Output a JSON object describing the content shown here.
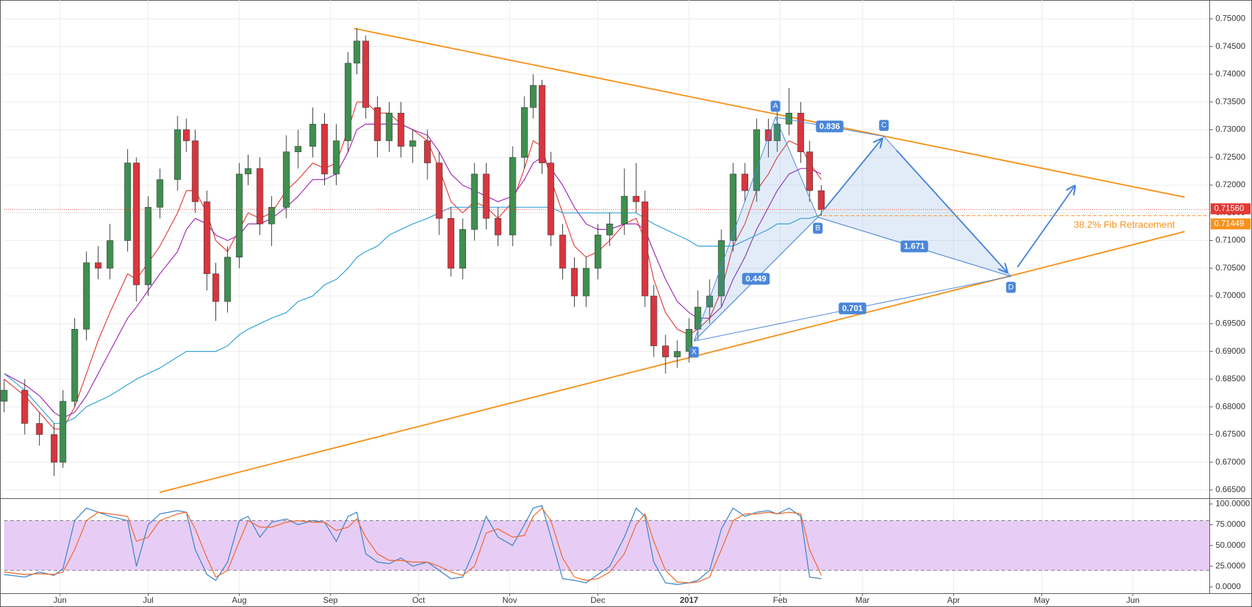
{
  "chart_data": [
    {
      "type": "candlestick",
      "xlim": [
        -19,
        391
      ],
      "ylim": [
        0.6635,
        0.7534
      ],
      "yticks": [
        {
          "value": 0.665,
          "label": "0.66500"
        },
        {
          "value": 0.67,
          "label": "0.67000"
        },
        {
          "value": 0.675,
          "label": "0.67500"
        },
        {
          "value": 0.68,
          "label": "0.68000"
        },
        {
          "value": 0.685,
          "label": "0.68500"
        },
        {
          "value": 0.69,
          "label": "0.69000"
        },
        {
          "value": 0.695,
          "label": "0.69500"
        },
        {
          "value": 0.7,
          "label": "0.70000"
        },
        {
          "value": 0.705,
          "label": "0.70500"
        },
        {
          "value": 0.71,
          "label": "0.71000"
        },
        {
          "value": 0.715,
          "label": "0.71500"
        },
        {
          "value": 0.72,
          "label": "0.72000"
        },
        {
          "value": 0.725,
          "label": "0.72500"
        },
        {
          "value": 0.73,
          "label": "0.73000"
        },
        {
          "value": 0.735,
          "label": "0.73500"
        },
        {
          "value": 0.74,
          "label": "0.74000"
        },
        {
          "value": 0.745,
          "label": "0.74500"
        },
        {
          "value": 0.75,
          "label": "0.75000"
        }
      ],
      "grid": true,
      "up_color": "#3f8f4f",
      "down_color": "#d9363e",
      "x": [
        -19,
        -12,
        -7,
        -2,
        1,
        5,
        9,
        13,
        17,
        23,
        26,
        30,
        34,
        40,
        43,
        46,
        50,
        53,
        57,
        61,
        64,
        68,
        72,
        77,
        81,
        86,
        90,
        94,
        98,
        101,
        104,
        108,
        112,
        116,
        120,
        125,
        129,
        133,
        137,
        141,
        145,
        149,
        154,
        158,
        161,
        164,
        167,
        171,
        175,
        179,
        183,
        187,
        192,
        196,
        199,
        202,
        206,
        210,
        214,
        217,
        221,
        225,
        229,
        233,
        237,
        241,
        244,
        248,
        252,
        255,
        259
      ],
      "open": [
        0.681,
        0.683,
        0.677,
        0.675,
        0.67,
        0.681,
        0.694,
        0.706,
        0.705,
        0.71,
        0.724,
        0.702,
        0.716,
        0.721,
        0.73,
        0.728,
        0.717,
        0.704,
        0.699,
        0.707,
        0.722,
        0.723,
        0.713,
        0.716,
        0.726,
        0.727,
        0.731,
        0.722,
        0.728,
        0.742,
        0.746,
        0.734,
        0.728,
        0.733,
        0.727,
        0.728,
        0.724,
        0.714,
        0.705,
        0.712,
        0.722,
        0.714,
        0.711,
        0.725,
        0.734,
        0.738,
        0.724,
        0.711,
        0.705,
        0.7,
        0.705,
        0.711,
        0.713,
        0.718,
        0.717,
        0.7,
        0.691,
        0.689,
        0.69,
        0.694,
        0.698,
        0.7,
        0.71,
        0.722,
        0.719,
        0.73,
        0.728,
        0.731,
        0.733,
        0.726,
        0.719
      ],
      "high": [
        0.685,
        0.685,
        0.679,
        0.677,
        0.683,
        0.696,
        0.708,
        0.709,
        0.713,
        0.7265,
        0.725,
        0.718,
        0.723,
        0.7325,
        0.732,
        0.73,
        0.719,
        0.706,
        0.709,
        0.724,
        0.7255,
        0.725,
        0.718,
        0.729,
        0.73,
        0.734,
        0.733,
        0.731,
        0.744,
        0.7483,
        0.747,
        0.736,
        0.735,
        0.735,
        0.73,
        0.73,
        0.726,
        0.716,
        0.714,
        0.724,
        0.724,
        0.716,
        0.727,
        0.736,
        0.74,
        0.739,
        0.726,
        0.713,
        0.707,
        0.707,
        0.713,
        0.715,
        0.723,
        0.724,
        0.719,
        0.702,
        0.693,
        0.692,
        0.696,
        0.701,
        0.703,
        0.712,
        0.724,
        0.724,
        0.732,
        0.732,
        0.734,
        0.7375,
        0.735,
        0.728,
        0.72
      ],
      "low": [
        0.679,
        0.675,
        0.673,
        0.6675,
        0.669,
        0.68,
        0.692,
        0.703,
        0.703,
        0.708,
        0.699,
        0.7,
        0.714,
        0.719,
        0.726,
        0.715,
        0.701,
        0.6955,
        0.697,
        0.705,
        0.72,
        0.711,
        0.709,
        0.714,
        0.723,
        0.725,
        0.72,
        0.72,
        0.726,
        0.74,
        0.732,
        0.725,
        0.726,
        0.725,
        0.724,
        0.721,
        0.711,
        0.7035,
        0.703,
        0.71,
        0.712,
        0.709,
        0.709,
        0.723,
        0.732,
        0.722,
        0.709,
        0.703,
        0.698,
        0.698,
        0.703,
        0.709,
        0.711,
        0.715,
        0.698,
        0.689,
        0.686,
        0.687,
        0.688,
        0.692,
        0.695,
        0.698,
        0.708,
        0.717,
        0.717,
        0.725,
        0.726,
        0.729,
        0.724,
        0.717,
        0.7145
      ],
      "close": [
        0.683,
        0.677,
        0.675,
        0.67,
        0.681,
        0.694,
        0.706,
        0.705,
        0.71,
        0.724,
        0.702,
        0.716,
        0.721,
        0.73,
        0.728,
        0.717,
        0.704,
        0.699,
        0.707,
        0.722,
        0.723,
        0.713,
        0.716,
        0.726,
        0.727,
        0.731,
        0.722,
        0.728,
        0.742,
        0.746,
        0.734,
        0.728,
        0.733,
        0.727,
        0.728,
        0.724,
        0.714,
        0.705,
        0.712,
        0.722,
        0.714,
        0.711,
        0.725,
        0.734,
        0.738,
        0.724,
        0.711,
        0.705,
        0.7,
        0.705,
        0.711,
        0.713,
        0.718,
        0.717,
        0.7,
        0.691,
        0.689,
        0.69,
        0.694,
        0.698,
        0.7,
        0.71,
        0.722,
        0.719,
        0.73,
        0.728,
        0.731,
        0.733,
        0.726,
        0.719,
        0.7156
      ],
      "moving_averages": [
        {
          "color": "#e53935",
          "values": [
            0.685,
            0.682,
            0.679,
            0.676,
            0.676,
            0.68,
            0.686,
            0.692,
            0.697,
            0.704,
            0.703,
            0.706,
            0.709,
            0.715,
            0.719,
            0.719,
            0.715,
            0.71,
            0.708,
            0.712,
            0.715,
            0.714,
            0.715,
            0.719,
            0.721,
            0.724,
            0.723,
            0.724,
            0.73,
            0.735,
            0.735,
            0.733,
            0.733,
            0.731,
            0.73,
            0.728,
            0.723,
            0.717,
            0.715,
            0.717,
            0.716,
            0.714,
            0.717,
            0.723,
            0.728,
            0.727,
            0.721,
            0.715,
            0.709,
            0.707,
            0.708,
            0.71,
            0.713,
            0.714,
            0.71,
            0.703,
            0.697,
            0.694,
            0.693,
            0.694,
            0.696,
            0.701,
            0.709,
            0.713,
            0.719,
            0.722,
            0.725,
            0.728,
            0.727,
            0.724,
            0.721
          ]
        },
        {
          "color": "#9c27b0",
          "values": [
            0.686,
            0.684,
            0.682,
            0.679,
            0.678,
            0.679,
            0.682,
            0.686,
            0.69,
            0.696,
            0.698,
            0.701,
            0.704,
            0.708,
            0.712,
            0.714,
            0.713,
            0.711,
            0.71,
            0.711,
            0.713,
            0.713,
            0.714,
            0.716,
            0.718,
            0.721,
            0.721,
            0.722,
            0.726,
            0.73,
            0.731,
            0.731,
            0.731,
            0.731,
            0.73,
            0.729,
            0.726,
            0.722,
            0.72,
            0.719,
            0.718,
            0.717,
            0.718,
            0.721,
            0.724,
            0.725,
            0.723,
            0.72,
            0.716,
            0.713,
            0.712,
            0.712,
            0.713,
            0.713,
            0.712,
            0.708,
            0.703,
            0.699,
            0.697,
            0.696,
            0.696,
            0.698,
            0.703,
            0.707,
            0.712,
            0.716,
            0.719,
            0.722,
            0.723,
            0.723,
            0.722
          ]
        },
        {
          "color": "#2a9fd6",
          "values": [
            0.686,
            0.683,
            0.68,
            0.677,
            0.677,
            0.678,
            0.68,
            0.681,
            0.682,
            0.684,
            0.685,
            0.686,
            0.687,
            0.689,
            0.69,
            0.69,
            0.69,
            0.69,
            0.691,
            0.693,
            0.694,
            0.695,
            0.696,
            0.697,
            0.699,
            0.7,
            0.702,
            0.703,
            0.705,
            0.707,
            0.708,
            0.709,
            0.711,
            0.712,
            0.713,
            0.714,
            0.715,
            0.716,
            0.716,
            0.716,
            0.716,
            0.716,
            0.716,
            0.716,
            0.716,
            0.716,
            0.716,
            0.715,
            0.715,
            0.715,
            0.715,
            0.715,
            0.715,
            0.715,
            0.714,
            0.713,
            0.712,
            0.711,
            0.71,
            0.709,
            0.709,
            0.709,
            0.709,
            0.71,
            0.711,
            0.712,
            0.713,
            0.713,
            0.714,
            0.714,
            0.7147
          ]
        }
      ],
      "last_price": {
        "value": 0.7156,
        "label": "0.71560",
        "color": "#e53935"
      },
      "fib": {
        "value": 0.71449,
        "label": "0.71449",
        "text": "38.2% Fib Retracement",
        "color": "#f7931e"
      },
      "trendlines": [
        {
          "color": "#f7931e",
          "x": [
            100,
            382.6
          ],
          "y": [
            0.74827,
            0.71782
          ]
        },
        {
          "color": "#f7931e",
          "x": [
            33.9,
            382.6
          ],
          "y": [
            0.66456,
            0.71162
          ]
        }
      ],
      "pattern": {
        "color": "#4a86d9",
        "points": [
          {
            "label": "X",
            "x": 215.7,
            "y": 0.69185
          },
          {
            "label": "A",
            "x": 243.4,
            "y": 0.73225
          },
          {
            "label": "B",
            "x": 257.8,
            "y": 0.71421
          },
          {
            "label": "C",
            "x": 280.3,
            "y": 0.72879
          },
          {
            "label": "D",
            "x": 323.5,
            "y": 0.70354
          }
        ],
        "ratios": [
          0.449,
          0.836,
          1.671,
          0.701
        ],
        "projection": {
          "x": 345.9,
          "y": 0.72035
        }
      }
    },
    {
      "type": "line",
      "xlim": [
        -19,
        391
      ],
      "ylim": [
        -7.5,
        106
      ],
      "yticks": [
        {
          "value": 100,
          "label": "100.0000"
        },
        {
          "value": 75,
          "label": "75.0000"
        },
        {
          "value": 50,
          "label": "50.0000"
        },
        {
          "value": 25,
          "label": "25.0000"
        },
        {
          "value": 0,
          "label": "0.0000"
        }
      ],
      "xticks": [
        {
          "value": 0,
          "label": "Jun"
        },
        {
          "value": 30,
          "label": "Jul"
        },
        {
          "value": 61,
          "label": "Aug"
        },
        {
          "value": 92,
          "label": "Sep"
        },
        {
          "value": 122,
          "label": "Oct"
        },
        {
          "value": 153,
          "label": "Nov"
        },
        {
          "value": 183,
          "label": "Dec"
        },
        {
          "value": 214,
          "label": "2017",
          "bold": true
        },
        {
          "value": 245,
          "label": "Feb"
        },
        {
          "value": 273,
          "label": "Mar"
        },
        {
          "value": 304,
          "label": "Apr"
        },
        {
          "value": 334,
          "label": "May"
        },
        {
          "value": 365,
          "label": "Jun"
        }
      ],
      "band": [
        20,
        80
      ],
      "band_color": "#e3c4f5",
      "series": [
        {
          "color": "#3d85c6",
          "values": [
            15,
            12,
            18,
            14,
            22,
            80,
            95,
            90,
            85,
            80,
            25,
            75,
            88,
            92,
            90,
            45,
            15,
            8,
            30,
            80,
            85,
            60,
            78,
            82,
            75,
            80,
            78,
            55,
            85,
            90,
            40,
            30,
            28,
            35,
            25,
            30,
            20,
            10,
            12,
            45,
            85,
            60,
            50,
            75,
            95,
            98,
            60,
            10,
            8,
            5,
            15,
            25,
            60,
            95,
            85,
            30,
            5,
            3,
            5,
            8,
            20,
            70,
            95,
            85,
            90,
            92,
            88,
            95,
            85,
            12,
            10
          ]
        },
        {
          "color": "#f06a30",
          "values": [
            18,
            15,
            16,
            15,
            18,
            45,
            80,
            90,
            88,
            85,
            55,
            60,
            80,
            88,
            90,
            70,
            35,
            12,
            20,
            55,
            80,
            72,
            72,
            78,
            80,
            78,
            78,
            68,
            72,
            82,
            60,
            40,
            32,
            32,
            30,
            30,
            25,
            18,
            14,
            25,
            65,
            70,
            60,
            62,
            85,
            95,
            80,
            35,
            12,
            8,
            10,
            18,
            40,
            75,
            88,
            55,
            20,
            6,
            5,
            6,
            12,
            45,
            80,
            88,
            88,
            90,
            88,
            90,
            88,
            45,
            14
          ]
        }
      ]
    }
  ]
}
